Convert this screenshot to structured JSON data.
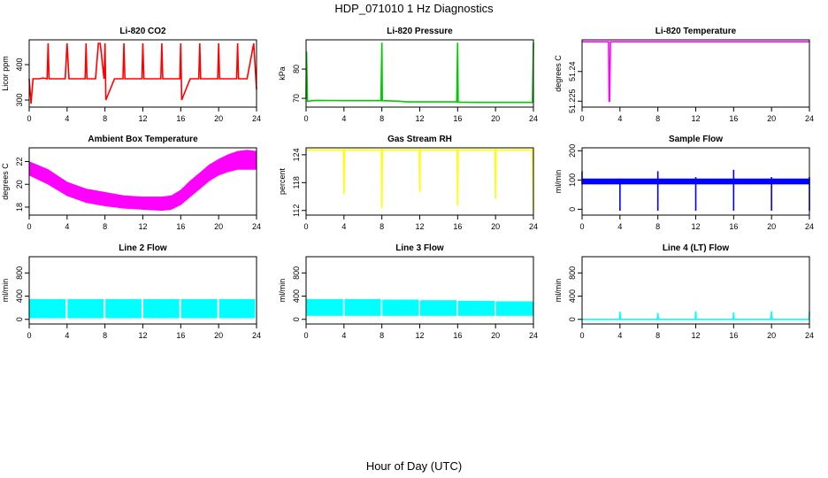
{
  "figure": {
    "title": "HDP_071010  1 Hz Diagnostics",
    "xlabel": "Hour of Day (UTC)"
  },
  "chart_data": [
    {
      "type": "line",
      "title": "Li-820 CO2",
      "ylabel": "Licor ppm",
      "color": "#ff0000",
      "xlim": [
        0,
        24
      ],
      "xticks": [
        0,
        4,
        8,
        12,
        16,
        20,
        24
      ],
      "ylim": [
        280,
        470
      ],
      "yticks": [
        300,
        400
      ],
      "series": [
        {
          "x": [
            0,
            0.2,
            0.4,
            1,
            1.5,
            1.9,
            2,
            2.1,
            3,
            3.8,
            4,
            4.2,
            5,
            5.9,
            6,
            6.1,
            7,
            7.3,
            7.5,
            7.9,
            8,
            8.1,
            9,
            9.9,
            10,
            10.1,
            11,
            11.9,
            12,
            12.1,
            13,
            13.9,
            14,
            14.1,
            15,
            15.9,
            16,
            16.1,
            17,
            17.9,
            18,
            18.1,
            19,
            19.9,
            20,
            20.1,
            21,
            21.9,
            22,
            22.1,
            23,
            23.7,
            24
          ],
          "y": [
            360,
            290,
            360,
            360,
            362,
            360,
            460,
            360,
            360,
            360,
            460,
            360,
            360,
            360,
            460,
            360,
            360,
            460,
            460,
            360,
            460,
            300,
            360,
            360,
            460,
            360,
            360,
            360,
            460,
            360,
            360,
            360,
            460,
            360,
            360,
            360,
            460,
            300,
            360,
            360,
            460,
            360,
            360,
            360,
            460,
            360,
            360,
            360,
            460,
            360,
            360,
            460,
            330
          ]
        }
      ]
    },
    {
      "type": "line",
      "title": "Li-820 Pressure",
      "ylabel": "kPa",
      "color": "#00cc00",
      "xlim": [
        0,
        24
      ],
      "xticks": [
        0,
        4,
        8,
        12,
        16,
        20,
        24
      ],
      "ylim": [
        67,
        90
      ],
      "yticks": [
        70,
        80
      ],
      "series": [
        {
          "x": [
            0,
            0.05,
            0.15,
            1,
            4,
            7.9,
            8,
            8.05,
            10,
            10.5,
            12,
            15.9,
            16,
            16.05,
            18,
            20,
            23.9,
            24
          ],
          "y": [
            70,
            86,
            69,
            69.3,
            69.2,
            69.2,
            89,
            69.2,
            69,
            68.8,
            68.8,
            68.8,
            89,
            68.7,
            68.6,
            68.6,
            68.6,
            89
          ]
        }
      ]
    },
    {
      "type": "line",
      "title": "Li-820 Temperature",
      "ylabel": "degrees C",
      "color": "#ff00ff",
      "xlim": [
        0,
        24
      ],
      "xticks": [
        0,
        4,
        8,
        12,
        16,
        20,
        24
      ],
      "ylim": [
        51.222,
        51.256
      ],
      "yticks": [
        51.225,
        51.24
      ],
      "series": [
        {
          "x": [
            0,
            2.8,
            2.85,
            2.9,
            3.0,
            24
          ],
          "y": [
            51.255,
            51.255,
            51.225,
            51.225,
            51.255,
            51.255
          ]
        }
      ]
    },
    {
      "type": "area",
      "title": "Ambient Box Temperature",
      "ylabel": "degrees C",
      "color": "#ff00ff",
      "xlim": [
        0,
        24
      ],
      "xticks": [
        0,
        4,
        8,
        12,
        16,
        20,
        24
      ],
      "ylim": [
        17.3,
        23.2
      ],
      "yticks": [
        18,
        20,
        22
      ],
      "series": [
        {
          "name": "upper",
          "x": [
            0,
            2,
            4,
            6,
            8,
            10,
            12,
            14,
            15,
            16,
            17,
            18,
            19,
            20,
            21,
            22,
            23,
            24
          ],
          "y": [
            22.0,
            21.3,
            20.2,
            19.6,
            19.3,
            19.0,
            18.9,
            18.9,
            19.0,
            19.5,
            20.3,
            21.0,
            21.7,
            22.2,
            22.6,
            22.9,
            23.0,
            22.9
          ]
        },
        {
          "name": "lower",
          "x": [
            0,
            2,
            4,
            6,
            8,
            10,
            12,
            14,
            15,
            16,
            17,
            18,
            19,
            20,
            21,
            22,
            23,
            24
          ],
          "y": [
            20.8,
            20.0,
            19.0,
            18.4,
            18.1,
            17.9,
            17.8,
            17.7,
            17.8,
            18.2,
            18.9,
            19.6,
            20.3,
            20.8,
            21.1,
            21.3,
            21.3,
            21.3
          ]
        }
      ]
    },
    {
      "type": "line",
      "title": "Gas Stream RH",
      "ylabel": "percent",
      "color": "#ffff00",
      "xlim": [
        0,
        24
      ],
      "xticks": [
        0,
        4,
        8,
        12,
        16,
        20,
        24
      ],
      "ylim": [
        111,
        125.5
      ],
      "yticks": [
        112,
        118,
        124
      ],
      "series": [
        {
          "x": [
            0,
            3.95,
            4,
            4.05,
            7.95,
            8,
            8.05,
            11.95,
            12,
            12.05,
            15.95,
            16,
            16.05,
            19.95,
            20,
            20.05,
            23.9,
            24
          ],
          "y": [
            125,
            125,
            115.5,
            125,
            125,
            112.5,
            125,
            125,
            116,
            125,
            125,
            113,
            125,
            125,
            114.5,
            125,
            125,
            112
          ]
        }
      ]
    },
    {
      "type": "line",
      "title": "Sample Flow",
      "ylabel": "ml/min",
      "color": "#0000ff",
      "xlim": [
        0,
        24
      ],
      "xticks": [
        0,
        4,
        8,
        12,
        16,
        20,
        24
      ],
      "ylim": [
        -20,
        210
      ],
      "yticks": [
        0,
        100,
        200
      ],
      "band": [
        85,
        105
      ],
      "spikes": [
        {
          "x": 0,
          "hi": 130,
          "lo": 85
        },
        {
          "x": 4,
          "hi": 105,
          "lo": -5
        },
        {
          "x": 8,
          "hi": 130,
          "lo": -5
        },
        {
          "x": 12,
          "hi": 110,
          "lo": -5
        },
        {
          "x": 16,
          "hi": 135,
          "lo": -5
        },
        {
          "x": 20,
          "hi": 110,
          "lo": -5
        },
        {
          "x": 24,
          "hi": 110,
          "lo": -5
        }
      ]
    },
    {
      "type": "area",
      "title": "Line 2 Flow",
      "ylabel": "ml/min",
      "color": "#00ffff",
      "xlim": [
        0,
        24
      ],
      "xticks": [
        0,
        4,
        8,
        12,
        16,
        20,
        24
      ],
      "ylim": [
        -80,
        1080
      ],
      "yticks": [
        0,
        400,
        800
      ],
      "blocks": [
        {
          "start": 0,
          "end": 3.85,
          "lo": 20,
          "hi": 350
        },
        {
          "start": 4.05,
          "end": 7.85,
          "lo": 20,
          "hi": 350
        },
        {
          "start": 8.05,
          "end": 11.85,
          "lo": 20,
          "hi": 350
        },
        {
          "start": 12.05,
          "end": 15.85,
          "lo": 20,
          "hi": 350
        },
        {
          "start": 16.05,
          "end": 19.85,
          "lo": 20,
          "hi": 350
        },
        {
          "start": 20.05,
          "end": 23.85,
          "lo": 20,
          "hi": 350
        }
      ]
    },
    {
      "type": "area",
      "title": "Line 3 Flow",
      "ylabel": "ml/min",
      "color": "#00ffff",
      "xlim": [
        0,
        24
      ],
      "xticks": [
        0,
        4,
        8,
        12,
        16,
        20,
        24
      ],
      "ylim": [
        -80,
        1080
      ],
      "yticks": [
        0,
        400,
        800
      ],
      "blocks": [
        {
          "start": 0,
          "end": 3.9,
          "lo": 60,
          "hi": 350
        },
        {
          "start": 4.05,
          "end": 7.9,
          "lo": 60,
          "hi": 350
        },
        {
          "start": 8.05,
          "end": 11.9,
          "lo": 60,
          "hi": 340
        },
        {
          "start": 12.05,
          "end": 15.9,
          "lo": 60,
          "hi": 330
        },
        {
          "start": 16.05,
          "end": 19.9,
          "lo": 60,
          "hi": 320
        },
        {
          "start": 20.05,
          "end": 24,
          "lo": 60,
          "hi": 310
        }
      ]
    },
    {
      "type": "line",
      "title": "Line 4 (LT) Flow",
      "ylabel": "ml/min",
      "color": "#00ffff",
      "xlim": [
        0,
        24
      ],
      "xticks": [
        0,
        4,
        8,
        12,
        16,
        20,
        24
      ],
      "ylim": [
        -80,
        1080
      ],
      "yticks": [
        0,
        400,
        800
      ],
      "series": [
        {
          "x": [
            0,
            3.95,
            4,
            4.05,
            7.95,
            8,
            8.05,
            11.95,
            12,
            12.05,
            15.95,
            16,
            16.05,
            19.95,
            20,
            20.05,
            23.95,
            24
          ],
          "y": [
            0,
            0,
            130,
            0,
            0,
            110,
            0,
            0,
            140,
            0,
            0,
            120,
            0,
            0,
            140,
            0,
            0,
            130
          ]
        }
      ]
    }
  ]
}
